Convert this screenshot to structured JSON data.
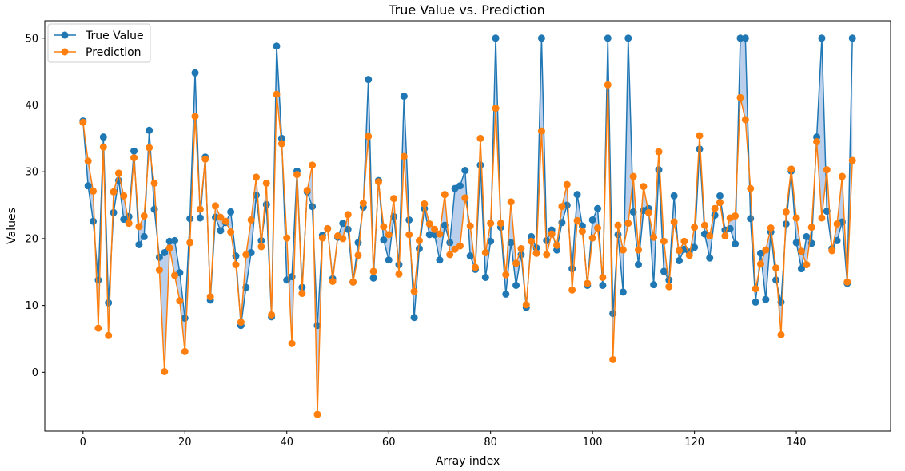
{
  "chart_data": {
    "type": "line",
    "title": "True Value vs. Prediction",
    "xlabel": "Array index",
    "ylabel": "Values",
    "xlim": [
      -7.5,
      158.5
    ],
    "ylim": [
      -8.8,
      52.6
    ],
    "xticks": [
      0,
      20,
      40,
      60,
      80,
      100,
      120,
      140
    ],
    "yticks": [
      0,
      10,
      20,
      30,
      40,
      50
    ],
    "grid": false,
    "legend": "top-left",
    "fill_between": true,
    "fill_color": "#aec7e8",
    "series": [
      {
        "name": "True Value",
        "color": "#1f77b4",
        "values": [
          37.6,
          27.9,
          22.6,
          13.8,
          35.2,
          10.4,
          23.9,
          28.7,
          22.9,
          23.3,
          33.1,
          19.1,
          20.3,
          36.2,
          24.4,
          17.2,
          17.9,
          19.6,
          19.7,
          14.9,
          8.1,
          23.0,
          44.8,
          23.1,
          32.2,
          10.8,
          23.2,
          21.2,
          22.4,
          24.0,
          17.4,
          7.0,
          12.7,
          17.9,
          26.5,
          19.7,
          25.1,
          8.3,
          48.8,
          35.0,
          13.8,
          14.3,
          30.1,
          12.7,
          27.0,
          24.8,
          7.0,
          20.5,
          21.5,
          14.0,
          20.2,
          22.3,
          21.4,
          13.5,
          19.4,
          24.7,
          43.8,
          14.1,
          28.7,
          19.8,
          16.8,
          23.3,
          16.1,
          41.3,
          22.8,
          8.2,
          18.5,
          24.5,
          20.6,
          20.6,
          16.8,
          22.0,
          19.4,
          27.5,
          27.9,
          30.2,
          17.4,
          15.4,
          31.0,
          14.2,
          19.6,
          50.0,
          21.7,
          11.7,
          19.4,
          13.0,
          17.6,
          9.7,
          20.3,
          18.6,
          50.0,
          19.7,
          21.3,
          18.3,
          22.4,
          25.0,
          15.5,
          26.6,
          21.9,
          13.0,
          22.8,
          24.5,
          13.0,
          50.0,
          8.8,
          20.6,
          12.0,
          50.0,
          24.0,
          16.1,
          24.2,
          24.5,
          13.1,
          30.3,
          15.1,
          13.8,
          26.4,
          16.7,
          18.4,
          18.0,
          18.7,
          33.4,
          20.7,
          17.1,
          23.5,
          26.4,
          21.3,
          21.5,
          19.2,
          50.0,
          50.0,
          23.0,
          10.5,
          17.8,
          10.9,
          21.0,
          13.8,
          10.5,
          22.2,
          30.1,
          19.4,
          15.5,
          20.3,
          19.3,
          35.2,
          50.0,
          24.1,
          18.5,
          19.7,
          22.5,
          13.3,
          50.0
        ]
      },
      {
        "name": "Prediction",
        "color": "#ff7f0e",
        "values": [
          37.4,
          31.6,
          27.1,
          6.6,
          33.7,
          5.5,
          27.0,
          29.8,
          26.4,
          22.3,
          32.1,
          21.8,
          23.4,
          33.6,
          28.3,
          15.3,
          0.1,
          18.6,
          14.5,
          10.7,
          3.1,
          19.4,
          38.3,
          24.4,
          31.9,
          11.3,
          24.9,
          23.2,
          22.6,
          21.0,
          16.1,
          7.5,
          17.6,
          22.8,
          29.2,
          18.8,
          28.3,
          8.6,
          41.6,
          34.2,
          20.1,
          4.3,
          29.6,
          11.8,
          27.2,
          31.0,
          -6.3,
          20.1,
          21.5,
          13.6,
          20.4,
          20.0,
          23.6,
          13.5,
          17.5,
          25.3,
          35.3,
          15.1,
          28.5,
          21.8,
          20.6,
          26.0,
          14.7,
          32.3,
          20.6,
          12.1,
          19.7,
          25.2,
          22.2,
          21.4,
          20.7,
          26.6,
          17.6,
          18.4,
          18.9,
          26.1,
          21.9,
          15.7,
          35.0,
          17.9,
          22.3,
          39.5,
          22.3,
          14.6,
          25.5,
          16.3,
          18.5,
          10.1,
          19.6,
          17.8,
          36.1,
          17.6,
          20.7,
          19.0,
          24.8,
          28.1,
          12.3,
          22.7,
          21.1,
          13.3,
          20.1,
          21.6,
          14.2,
          43.0,
          1.9,
          22.0,
          18.3,
          22.3,
          29.3,
          18.3,
          27.8,
          23.9,
          20.2,
          33.0,
          19.6,
          12.8,
          22.5,
          18.2,
          19.6,
          17.5,
          21.7,
          35.4,
          22.0,
          20.4,
          24.5,
          25.4,
          20.4,
          23.1,
          23.4,
          41.1,
          37.8,
          27.5,
          12.5,
          16.2,
          18.3,
          21.6,
          15.6,
          5.6,
          24.0,
          30.4,
          23.1,
          18.1,
          16.1,
          21.7,
          34.5,
          23.1,
          30.3,
          18.2,
          22.2,
          29.3,
          13.5,
          31.7
        ]
      }
    ]
  }
}
